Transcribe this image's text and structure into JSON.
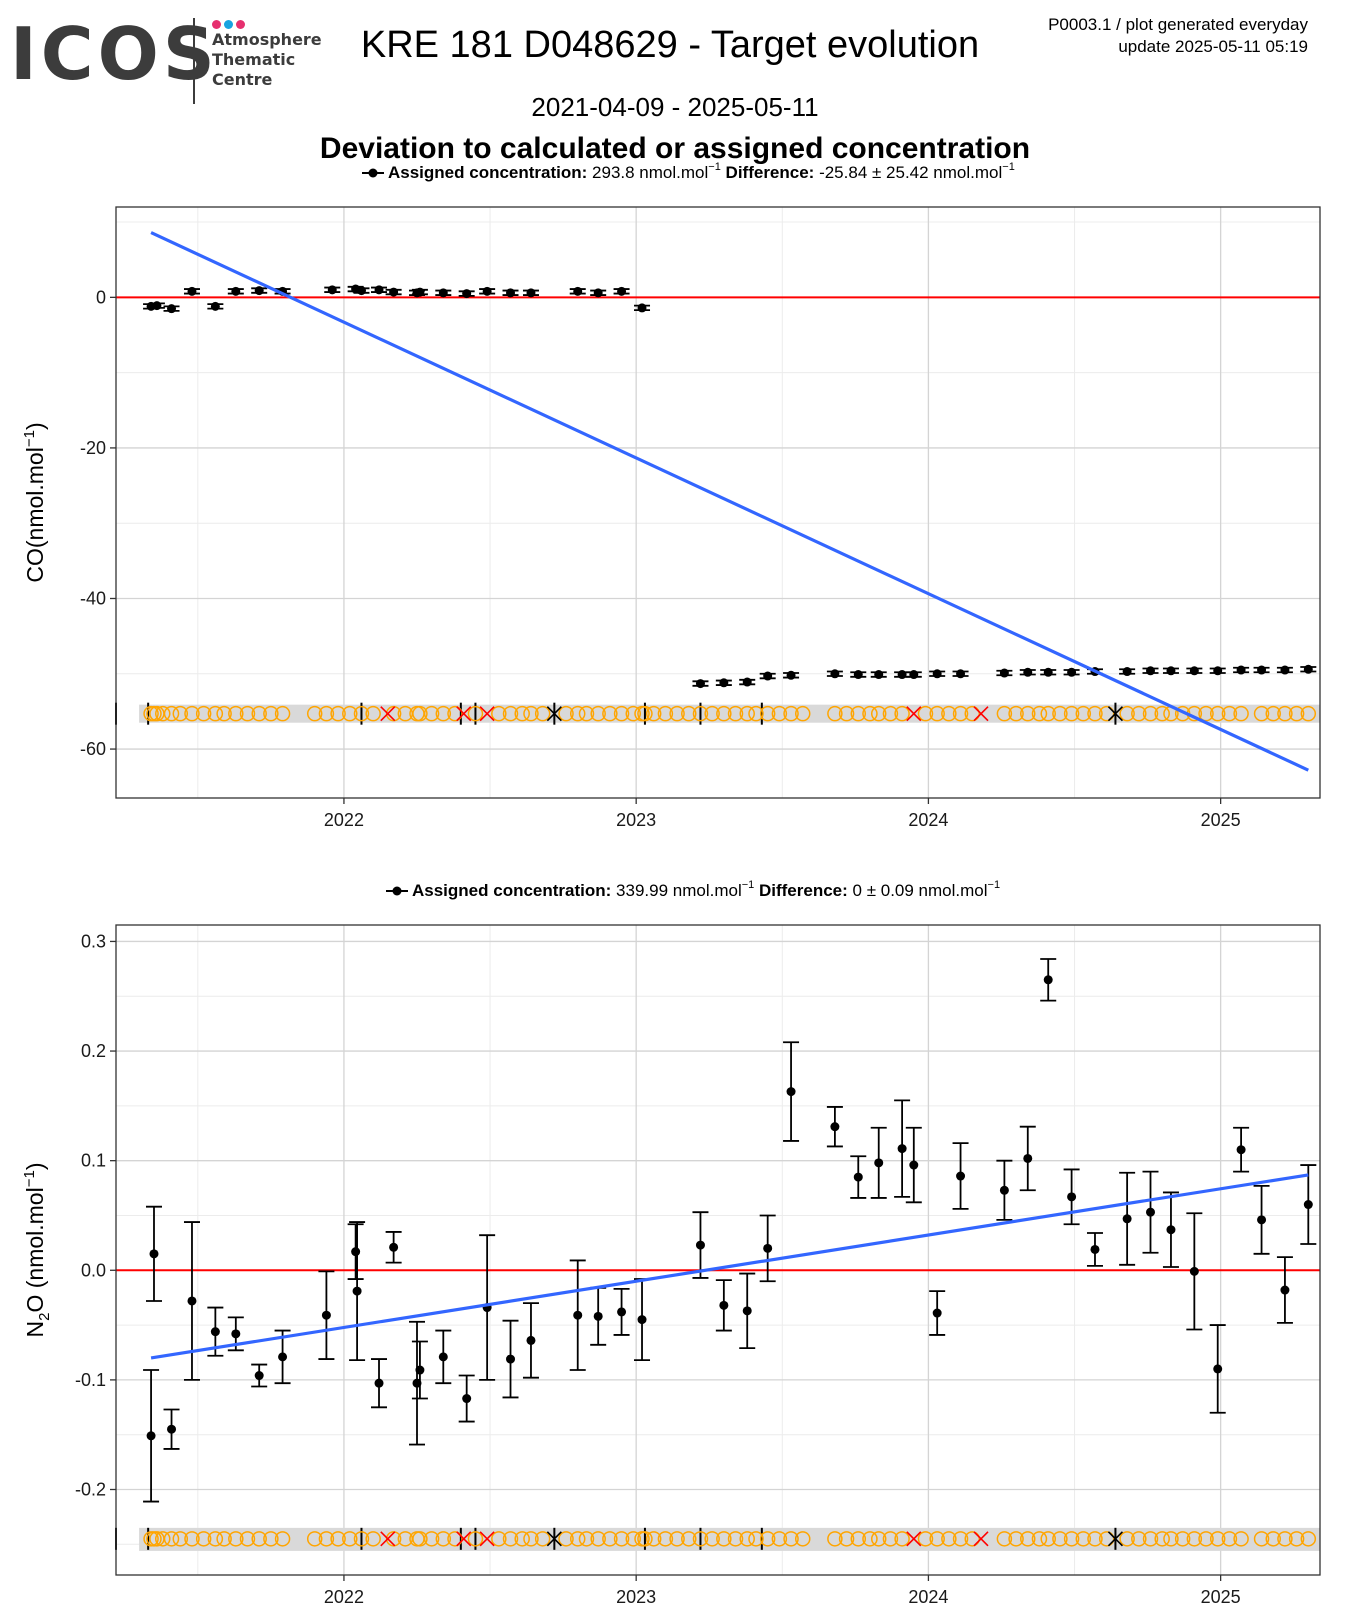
{
  "header": {
    "logo_word": "ICOS",
    "logo_lines": [
      "Atmosphere",
      "Thematic",
      "Centre"
    ],
    "logo_dot_colors": [
      "#e6306f",
      "#18a3e0",
      "#e6306f"
    ],
    "title": "KRE 181 D048629 - Target evolution",
    "product_line1": "P0003.1 / plot generated everyday",
    "product_line2": "update  2025-05-11 05:19",
    "date_range": "2021-04-09 - 2025-05-11",
    "subtitle": "Deviation to calculated or assigned concentration"
  },
  "colors": {
    "trend": "#3366ff",
    "zero_line": "#ff0000",
    "points": "#000000",
    "flag_circle": "#ffa500",
    "flag_cross": "#ff0000",
    "flag_band": "#d9d9d9",
    "grid_major": "#d4d4d4",
    "grid_minor": "#ececec"
  },
  "chart_data": [
    {
      "id": "co",
      "type": "scatter",
      "ylabel_base": "CO",
      "ylabel_sub": "",
      "ylabel_unit": "(nmol.mol",
      "ylabel_exp": "−1",
      "ylabel_close": ")",
      "legend_label": "Assigned concentration:",
      "legend_value": "293.8 nmol.mol",
      "legend_exp": "−1",
      "legend_diff_label": "Difference:",
      "legend_diff_value": "-25.84 ± 25.42 nmol.mol",
      "legend_diff_exp": "−1",
      "xlim": [
        2021.22,
        2025.34
      ],
      "ylim": [
        -66.5,
        12
      ],
      "yticks": [
        0,
        -20,
        -40,
        -60
      ],
      "ytick_labels": [
        "0",
        "-20",
        "-40",
        "-60"
      ],
      "yminor": [
        10,
        -10,
        -30,
        -50
      ],
      "xticks": [
        2022,
        2023,
        2024,
        2025
      ],
      "xtick_labels": [
        "2022",
        "2023",
        "2024",
        "2025"
      ],
      "grid": true,
      "trend": {
        "x": [
          2021.34,
          2025.3
        ],
        "y": [
          8.6,
          -62.8
        ]
      },
      "points": [
        {
          "x": 2021.34,
          "y": -1.2,
          "err": 0.3
        },
        {
          "x": 2021.36,
          "y": -1.1,
          "err": 0.3
        },
        {
          "x": 2021.41,
          "y": -1.5,
          "err": 0.3
        },
        {
          "x": 2021.48,
          "y": 0.8,
          "err": 0.3
        },
        {
          "x": 2021.56,
          "y": -1.2,
          "err": 0.3
        },
        {
          "x": 2021.63,
          "y": 0.8,
          "err": 0.3
        },
        {
          "x": 2021.71,
          "y": 0.9,
          "err": 0.3
        },
        {
          "x": 2021.79,
          "y": 0.8,
          "err": 0.3
        },
        {
          "x": 2021.96,
          "y": 1.0,
          "err": 0.3
        },
        {
          "x": 2022.04,
          "y": 1.1,
          "err": 0.3
        },
        {
          "x": 2022.06,
          "y": 0.9,
          "err": 0.3
        },
        {
          "x": 2022.12,
          "y": 1.0,
          "err": 0.3
        },
        {
          "x": 2022.17,
          "y": 0.7,
          "err": 0.3
        },
        {
          "x": 2022.25,
          "y": 0.6,
          "err": 0.3
        },
        {
          "x": 2022.26,
          "y": 0.7,
          "err": 0.3
        },
        {
          "x": 2022.34,
          "y": 0.6,
          "err": 0.3
        },
        {
          "x": 2022.42,
          "y": 0.5,
          "err": 0.3
        },
        {
          "x": 2022.49,
          "y": 0.8,
          "err": 0.3
        },
        {
          "x": 2022.57,
          "y": 0.6,
          "err": 0.3
        },
        {
          "x": 2022.64,
          "y": 0.6,
          "err": 0.3
        },
        {
          "x": 2022.8,
          "y": 0.8,
          "err": 0.3
        },
        {
          "x": 2022.87,
          "y": 0.6,
          "err": 0.3
        },
        {
          "x": 2022.95,
          "y": 0.8,
          "err": 0.3
        },
        {
          "x": 2023.02,
          "y": -1.4,
          "err": 0.3
        },
        {
          "x": 2023.22,
          "y": -51.3,
          "err": 0.3
        },
        {
          "x": 2023.3,
          "y": -51.2,
          "err": 0.3
        },
        {
          "x": 2023.38,
          "y": -51.1,
          "err": 0.3
        },
        {
          "x": 2023.45,
          "y": -50.3,
          "err": 0.3
        },
        {
          "x": 2023.53,
          "y": -50.2,
          "err": 0.3
        },
        {
          "x": 2023.68,
          "y": -50.0,
          "err": 0.3
        },
        {
          "x": 2023.76,
          "y": -50.1,
          "err": 0.3
        },
        {
          "x": 2023.83,
          "y": -50.1,
          "err": 0.3
        },
        {
          "x": 2023.91,
          "y": -50.1,
          "err": 0.3
        },
        {
          "x": 2023.95,
          "y": -50.1,
          "err": 0.3
        },
        {
          "x": 2024.03,
          "y": -50.0,
          "err": 0.3
        },
        {
          "x": 2024.11,
          "y": -50.0,
          "err": 0.3
        },
        {
          "x": 2024.26,
          "y": -49.9,
          "err": 0.3
        },
        {
          "x": 2024.34,
          "y": -49.8,
          "err": 0.3
        },
        {
          "x": 2024.41,
          "y": -49.8,
          "err": 0.3
        },
        {
          "x": 2024.49,
          "y": -49.8,
          "err": 0.3
        },
        {
          "x": 2024.57,
          "y": -49.7,
          "err": 0.3
        },
        {
          "x": 2024.68,
          "y": -49.7,
          "err": 0.3
        },
        {
          "x": 2024.76,
          "y": -49.6,
          "err": 0.3
        },
        {
          "x": 2024.83,
          "y": -49.6,
          "err": 0.3
        },
        {
          "x": 2024.91,
          "y": -49.6,
          "err": 0.3
        },
        {
          "x": 2024.99,
          "y": -49.6,
          "err": 0.3
        },
        {
          "x": 2025.07,
          "y": -49.5,
          "err": 0.3
        },
        {
          "x": 2025.14,
          "y": -49.5,
          "err": 0.3
        },
        {
          "x": 2025.22,
          "y": -49.5,
          "err": 0.3
        },
        {
          "x": 2025.3,
          "y": -49.4,
          "err": 0.3
        }
      ],
      "flag_y": -55.3,
      "flag_band": [
        -54.1,
        -56.5
      ]
    },
    {
      "id": "n2o",
      "type": "scatter",
      "ylabel_base": "N",
      "ylabel_sub": "2",
      "ylabel_unit": "O (nmol.mol",
      "ylabel_exp": "−1",
      "ylabel_close": ")",
      "legend_label": "Assigned concentration:",
      "legend_value": "339.99 nmol.mol",
      "legend_exp": "−1",
      "legend_diff_label": "Difference:",
      "legend_diff_value": "0 ± 0.09 nmol.mol",
      "legend_diff_exp": "−1",
      "xlim": [
        2021.22,
        2025.34
      ],
      "ylim": [
        -0.278,
        0.315
      ],
      "yticks": [
        0.3,
        0.2,
        0.1,
        0.0,
        -0.1,
        -0.2
      ],
      "ytick_labels": [
        "0.3",
        "0.2",
        "0.1",
        "0.0",
        "-0.1",
        "-0.2"
      ],
      "yminor": [
        0.25,
        0.15,
        0.05,
        -0.05,
        -0.15,
        -0.25
      ],
      "xticks": [
        2022,
        2023,
        2024,
        2025
      ],
      "xtick_labels": [
        "2022",
        "2023",
        "2024",
        "2025"
      ],
      "grid": true,
      "trend": {
        "x": [
          2021.34,
          2025.3
        ],
        "y": [
          -0.08,
          0.087
        ]
      },
      "points": [
        {
          "x": 2021.34,
          "y": -0.151,
          "err": 0.06
        },
        {
          "x": 2021.35,
          "y": 0.015,
          "err": 0.043
        },
        {
          "x": 2021.41,
          "y": -0.145,
          "err": 0.018
        },
        {
          "x": 2021.48,
          "y": -0.028,
          "err": 0.072
        },
        {
          "x": 2021.56,
          "y": -0.056,
          "err": 0.022
        },
        {
          "x": 2021.63,
          "y": -0.058,
          "err": 0.015
        },
        {
          "x": 2021.71,
          "y": -0.096,
          "err": 0.01
        },
        {
          "x": 2021.79,
          "y": -0.079,
          "err": 0.024
        },
        {
          "x": 2021.94,
          "y": -0.041,
          "err": 0.04
        },
        {
          "x": 2022.04,
          "y": 0.017,
          "err": 0.025
        },
        {
          "x": 2022.045,
          "y": -0.019,
          "err": 0.063
        },
        {
          "x": 2022.12,
          "y": -0.103,
          "err": 0.022
        },
        {
          "x": 2022.17,
          "y": 0.021,
          "err": 0.014
        },
        {
          "x": 2022.25,
          "y": -0.103,
          "err": 0.056
        },
        {
          "x": 2022.26,
          "y": -0.091,
          "err": 0.026
        },
        {
          "x": 2022.34,
          "y": -0.079,
          "err": 0.024
        },
        {
          "x": 2022.42,
          "y": -0.117,
          "err": 0.021
        },
        {
          "x": 2022.49,
          "y": -0.034,
          "err": 0.066
        },
        {
          "x": 2022.57,
          "y": -0.081,
          "err": 0.035
        },
        {
          "x": 2022.64,
          "y": -0.064,
          "err": 0.034
        },
        {
          "x": 2022.8,
          "y": -0.041,
          "err": 0.05
        },
        {
          "x": 2022.87,
          "y": -0.042,
          "err": 0.026
        },
        {
          "x": 2022.95,
          "y": -0.038,
          "err": 0.021
        },
        {
          "x": 2023.02,
          "y": -0.045,
          "err": 0.037
        },
        {
          "x": 2023.22,
          "y": 0.023,
          "err": 0.03
        },
        {
          "x": 2023.3,
          "y": -0.032,
          "err": 0.023
        },
        {
          "x": 2023.38,
          "y": -0.037,
          "err": 0.034
        },
        {
          "x": 2023.45,
          "y": 0.02,
          "err": 0.03
        },
        {
          "x": 2023.53,
          "y": 0.163,
          "err": 0.045
        },
        {
          "x": 2023.68,
          "y": 0.131,
          "err": 0.018
        },
        {
          "x": 2023.76,
          "y": 0.085,
          "err": 0.019
        },
        {
          "x": 2023.83,
          "y": 0.098,
          "err": 0.032
        },
        {
          "x": 2023.91,
          "y": 0.111,
          "err": 0.044
        },
        {
          "x": 2023.95,
          "y": 0.096,
          "err": 0.034
        },
        {
          "x": 2024.03,
          "y": -0.039,
          "err": 0.02
        },
        {
          "x": 2024.11,
          "y": 0.086,
          "err": 0.03
        },
        {
          "x": 2024.26,
          "y": 0.073,
          "err": 0.027
        },
        {
          "x": 2024.34,
          "y": 0.102,
          "err": 0.029
        },
        {
          "x": 2024.41,
          "y": 0.265,
          "err": 0.019
        },
        {
          "x": 2024.49,
          "y": 0.067,
          "err": 0.025
        },
        {
          "x": 2024.57,
          "y": 0.019,
          "err": 0.015
        },
        {
          "x": 2024.68,
          "y": 0.047,
          "err": 0.042
        },
        {
          "x": 2024.76,
          "y": 0.053,
          "err": 0.037
        },
        {
          "x": 2024.83,
          "y": 0.037,
          "err": 0.034
        },
        {
          "x": 2024.91,
          "y": -0.001,
          "err": 0.053
        },
        {
          "x": 2024.99,
          "y": -0.09,
          "err": 0.04
        },
        {
          "x": 2025.07,
          "y": 0.11,
          "err": 0.02
        },
        {
          "x": 2025.14,
          "y": 0.046,
          "err": 0.031
        },
        {
          "x": 2025.22,
          "y": -0.018,
          "err": 0.03
        },
        {
          "x": 2025.3,
          "y": 0.06,
          "err": 0.036
        }
      ],
      "flag_y": -0.245,
      "flag_band": [
        -0.235,
        -0.256
      ]
    }
  ],
  "flags": {
    "circles": [
      2021.34,
      2021.35,
      2021.36,
      2021.38,
      2021.41,
      2021.44,
      2021.48,
      2021.52,
      2021.56,
      2021.59,
      2021.63,
      2021.67,
      2021.71,
      2021.75,
      2021.79,
      2021.9,
      2021.94,
      2021.98,
      2022.02,
      2022.06,
      2022.1,
      2022.17,
      2022.21,
      2022.25,
      2022.26,
      2022.3,
      2022.34,
      2022.38,
      2022.45,
      2022.53,
      2022.57,
      2022.61,
      2022.64,
      2022.68,
      2022.76,
      2022.8,
      2022.83,
      2022.87,
      2022.91,
      2022.95,
      2022.99,
      2023.02,
      2023.03,
      2023.06,
      2023.1,
      2023.14,
      2023.18,
      2023.22,
      2023.26,
      2023.3,
      2023.34,
      2023.38,
      2023.41,
      2023.45,
      2023.49,
      2023.53,
      2023.57,
      2023.68,
      2023.72,
      2023.76,
      2023.8,
      2023.83,
      2023.87,
      2023.91,
      2023.99,
      2024.03,
      2024.07,
      2024.11,
      2024.15,
      2024.26,
      2024.3,
      2024.34,
      2024.38,
      2024.41,
      2024.45,
      2024.49,
      2024.53,
      2024.57,
      2024.61,
      2024.68,
      2024.72,
      2024.76,
      2024.8,
      2024.83,
      2024.87,
      2024.91,
      2024.95,
      2024.99,
      2025.03,
      2025.07,
      2025.14,
      2025.18,
      2025.22,
      2025.26,
      2025.3
    ],
    "crosses_red": [
      2022.15,
      2022.41,
      2022.49,
      2023.95,
      2024.18
    ],
    "crosses_black": [
      2022.72,
      2024.64
    ],
    "ticks": [
      2021.22,
      2021.33,
      2022.06,
      2022.4,
      2022.45,
      2022.72,
      2023.03,
      2023.22,
      2023.43,
      2024.64
    ]
  }
}
